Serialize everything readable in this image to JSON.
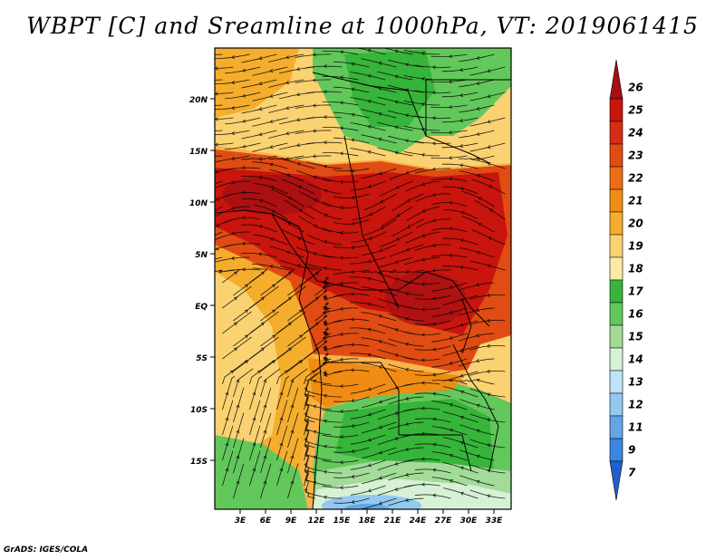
{
  "title": "WBPT [C] and Sreamline at 1000hPa, VT: 2019061415",
  "footer": "GrADS: IGES/COLA",
  "map": {
    "lat_ticks": [
      "20N",
      "15N",
      "10N",
      "5N",
      "EQ",
      "5S",
      "10S",
      "15S"
    ],
    "lon_ticks": [
      "3E",
      "6E",
      "9E",
      "12E",
      "15E",
      "18E",
      "21E",
      "24E",
      "27E",
      "30E",
      "33E"
    ]
  },
  "colorbar": {
    "labels": [
      "26",
      "25",
      "24",
      "23",
      "22",
      "21",
      "20",
      "19",
      "18",
      "17",
      "16",
      "15",
      "14",
      "13",
      "12",
      "11",
      "9",
      "7"
    ],
    "colors": [
      "#a50f15",
      "#c8150d",
      "#d42f14",
      "#e04c13",
      "#ec6d14",
      "#f08c14",
      "#f5ad2d",
      "#fbd271",
      "#fbeaa6",
      "#37b43a",
      "#63c85b",
      "#a3dc99",
      "#d7f1d6",
      "#bfe3f7",
      "#93c9f0",
      "#62a6e8",
      "#3a86e0",
      "#1f5fcf"
    ]
  }
}
